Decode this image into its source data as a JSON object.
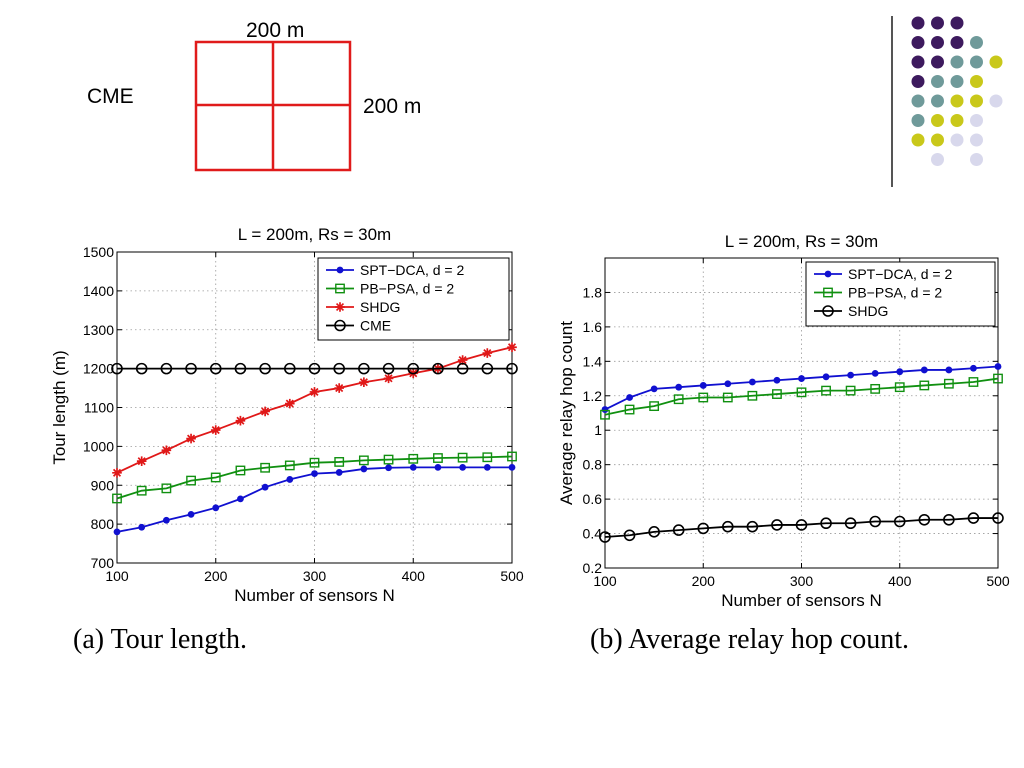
{
  "diagram": {
    "label_top": "200 m",
    "label_right": "200 m",
    "label_left": "CME",
    "grid_color": "#e01b1b"
  },
  "palette": {
    "colors": {
      "purple": "#3d1a5e",
      "teal": "#6f9a9a",
      "yellow": "#c9c81a",
      "lavender": "#d8d8ec"
    },
    "rows": [
      [
        "purple",
        "purple",
        "purple",
        null,
        null
      ],
      [
        "purple",
        "purple",
        "purple",
        "teal",
        null
      ],
      [
        "purple",
        "purple",
        "teal",
        "teal",
        "yellow"
      ],
      [
        "purple",
        "teal",
        "teal",
        "yellow",
        null
      ],
      [
        "teal",
        "teal",
        "yellow",
        "yellow",
        "lavender"
      ],
      [
        "teal",
        "yellow",
        "yellow",
        "lavender",
        null
      ],
      [
        "yellow",
        "yellow",
        "lavender",
        "lavender",
        null
      ],
      [
        null,
        "lavender",
        null,
        "lavender",
        null
      ]
    ]
  },
  "captions": {
    "a": "(a) Tour length.",
    "b": "(b) Average relay hop count."
  },
  "chart_data": [
    {
      "type": "line",
      "title": "L = 200m, Rs = 30m",
      "xlabel": "Number of sensors N",
      "ylabel": "Tour length (m)",
      "xlim": [
        100,
        500
      ],
      "ylim": [
        700,
        1500
      ],
      "xticks": [
        100,
        200,
        300,
        400,
        500
      ],
      "yticks": [
        700,
        800,
        900,
        1000,
        1100,
        1200,
        1300,
        1400,
        1500
      ],
      "grid": true,
      "legend_position": "top-right",
      "x": [
        100,
        125,
        150,
        175,
        200,
        225,
        250,
        275,
        300,
        325,
        350,
        375,
        400,
        425,
        450,
        475,
        500
      ],
      "series": [
        {
          "name": "SPT−DCA, d = 2",
          "color": "#1010d0",
          "marker": "dot",
          "values": [
            780,
            792,
            810,
            825,
            842,
            865,
            895,
            915,
            930,
            933,
            942,
            945,
            946,
            946,
            946,
            946,
            946
          ]
        },
        {
          "name": "PB−PSA, d = 2",
          "color": "#109010",
          "marker": "square",
          "values": [
            866,
            886,
            892,
            912,
            920,
            938,
            945,
            951,
            958,
            960,
            964,
            966,
            968,
            970,
            971,
            972,
            974
          ]
        },
        {
          "name": "SHDG",
          "color": "#e01818",
          "marker": "star",
          "values": [
            932,
            962,
            990,
            1020,
            1042,
            1066,
            1090,
            1110,
            1140,
            1150,
            1165,
            1175,
            1188,
            1200,
            1222,
            1240,
            1255
          ]
        },
        {
          "name": "CME",
          "color": "#000000",
          "marker": "circle",
          "values": [
            1200,
            1200,
            1200,
            1200,
            1200,
            1200,
            1200,
            1200,
            1200,
            1200,
            1200,
            1200,
            1200,
            1200,
            1200,
            1200,
            1200
          ]
        }
      ]
    },
    {
      "type": "line",
      "title": "L = 200m, Rs = 30m",
      "xlabel": "Number of sensors N",
      "ylabel": "Average relay hop count",
      "xlim": [
        100,
        500
      ],
      "ylim": [
        0.2,
        2.0
      ],
      "xticks": [
        100,
        200,
        300,
        400,
        500
      ],
      "yticks": [
        0.2,
        0.4,
        0.6,
        0.8,
        1,
        1.2,
        1.4,
        1.6,
        1.8
      ],
      "grid": true,
      "legend_position": "top-right",
      "x": [
        100,
        125,
        150,
        175,
        200,
        225,
        250,
        275,
        300,
        325,
        350,
        375,
        400,
        425,
        450,
        475,
        500
      ],
      "series": [
        {
          "name": "SPT−DCA, d = 2",
          "color": "#1010d0",
          "marker": "dot",
          "values": [
            1.12,
            1.19,
            1.24,
            1.25,
            1.26,
            1.27,
            1.28,
            1.29,
            1.3,
            1.31,
            1.32,
            1.33,
            1.34,
            1.35,
            1.35,
            1.36,
            1.37
          ]
        },
        {
          "name": "PB−PSA, d = 2",
          "color": "#109010",
          "marker": "square",
          "values": [
            1.09,
            1.12,
            1.14,
            1.18,
            1.19,
            1.19,
            1.2,
            1.21,
            1.22,
            1.23,
            1.23,
            1.24,
            1.25,
            1.26,
            1.27,
            1.28,
            1.3
          ]
        },
        {
          "name": "SHDG",
          "color": "#000000",
          "marker": "circle",
          "values": [
            0.38,
            0.39,
            0.41,
            0.42,
            0.43,
            0.44,
            0.44,
            0.45,
            0.45,
            0.46,
            0.46,
            0.47,
            0.47,
            0.48,
            0.48,
            0.49,
            0.49
          ]
        }
      ]
    }
  ]
}
